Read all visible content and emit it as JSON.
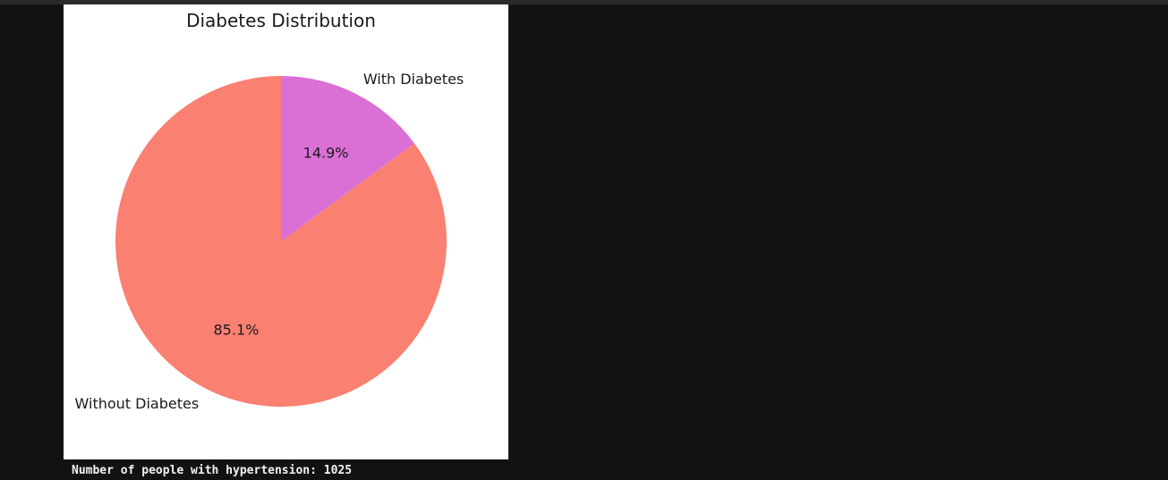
{
  "chart_data": {
    "type": "pie",
    "title": "Diabetes Distribution",
    "slices": [
      {
        "label": "Without Diabetes",
        "value": 85.1,
        "pct_label": "85.1%",
        "color": "#fa8072"
      },
      {
        "label": "With Diabetes",
        "value": 14.9,
        "pct_label": "14.9%",
        "color": "#da70d6"
      }
    ]
  },
  "output": {
    "text": "Number of people with hypertension: 1025"
  }
}
